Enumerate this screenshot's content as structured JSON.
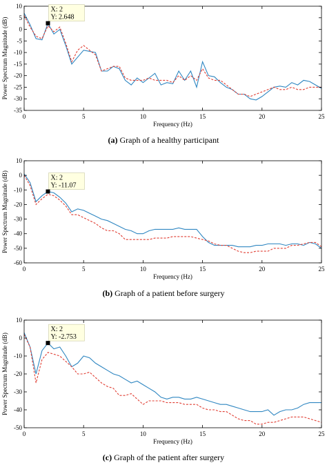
{
  "chart_data": [
    {
      "type": "line",
      "xlabel": "Frequency (Hz)",
      "ylabel": "Power Spectrum Magnitude (dB)",
      "xlim": [
        0,
        25
      ],
      "ylim": [
        -35,
        10
      ],
      "xticks": [
        0,
        5,
        10,
        15,
        20,
        25
      ],
      "yticks": [
        -35,
        -30,
        -25,
        -20,
        -15,
        -10,
        -5,
        0,
        5,
        10
      ],
      "grid": false,
      "caption_label": "(a)",
      "caption_text": "Graph of a healthy participant",
      "datatip": {
        "x": 2,
        "y": 2.648,
        "line1": "X: 2",
        "line2": "Y: 2.648"
      },
      "series": [
        {
          "style": "solid",
          "color": "#2e86c1",
          "x": [
            0,
            0.5,
            1,
            1.5,
            2,
            2.5,
            3,
            3.5,
            4,
            4.5,
            5,
            5.5,
            6,
            6.5,
            7,
            7.5,
            8,
            8.5,
            9,
            9.5,
            10,
            10.5,
            11,
            11.5,
            12,
            12.5,
            13,
            13.5,
            14,
            14.5,
            15,
            15.5,
            16,
            16.5,
            17,
            17.5,
            18,
            18.5,
            19,
            19.5,
            20,
            20.5,
            21,
            21.5,
            22,
            22.5,
            23,
            23.5,
            24,
            24.5,
            25
          ],
          "y": [
            7,
            2,
            -4,
            -4.5,
            2.6,
            -2,
            0,
            -7,
            -15,
            -12,
            -9,
            -9.5,
            -10,
            -18,
            -18,
            -16,
            -17,
            -22,
            -24,
            -21,
            -23,
            -21,
            -19,
            -24,
            -23,
            -23.5,
            -18,
            -22,
            -18,
            -25,
            -14,
            -20,
            -20.5,
            -23,
            -25,
            -26,
            -28,
            -28,
            -30,
            -30.5,
            -29,
            -27,
            -25,
            -24.5,
            -25,
            -23,
            -24,
            -22,
            -22.5,
            -24,
            -25.5
          ]
        },
        {
          "style": "dashed",
          "color": "#e03c31",
          "x": [
            0,
            0.5,
            1,
            1.5,
            2,
            2.5,
            3,
            3.5,
            4,
            4.5,
            5,
            5.5,
            6,
            6.5,
            7,
            7.5,
            8,
            8.5,
            9,
            9.5,
            10,
            10.5,
            11,
            11.5,
            12,
            12.5,
            13,
            13.5,
            14,
            14.5,
            15,
            15.5,
            16,
            16.5,
            17,
            17.5,
            18,
            18.5,
            19,
            19.5,
            20,
            20.5,
            21,
            21.5,
            22,
            22.5,
            23,
            23.5,
            24,
            24.5,
            25
          ],
          "y": [
            6,
            1,
            -3,
            -4,
            1.5,
            -1,
            1,
            -6,
            -14,
            -9,
            -7,
            -9,
            -11,
            -18,
            -17,
            -16,
            -16,
            -21,
            -22,
            -22,
            -22,
            -21,
            -22,
            -22,
            -22,
            -23,
            -20,
            -22,
            -20,
            -22,
            -17,
            -21,
            -22,
            -22,
            -24,
            -26,
            -28,
            -28,
            -29,
            -28,
            -27,
            -26,
            -25,
            -26,
            -26,
            -25,
            -26,
            -26,
            -25,
            -25,
            -25
          ]
        }
      ]
    },
    {
      "type": "line",
      "xlabel": "Frequency (Hz)",
      "ylabel": "Power Spectrum Magnitude (dB)",
      "xlim": [
        0,
        25
      ],
      "ylim": [
        -60,
        10
      ],
      "xticks": [
        0,
        5,
        10,
        15,
        20,
        25
      ],
      "yticks": [
        -60,
        -50,
        -40,
        -30,
        -20,
        -10,
        0,
        10
      ],
      "grid": false,
      "caption_label": "(b)",
      "caption_text": "Graph of a patient before surgery",
      "datatip": {
        "x": 2,
        "y": -11.07,
        "line1": "X: 2",
        "line2": "Y: -11.07"
      },
      "series": [
        {
          "style": "solid",
          "color": "#2e86c1",
          "x": [
            0,
            0.5,
            1,
            1.5,
            2,
            2.5,
            3,
            3.5,
            4,
            4.5,
            5,
            5.5,
            6,
            6.5,
            7,
            7.5,
            8,
            8.5,
            9,
            9.5,
            10,
            10.5,
            11,
            11.5,
            12,
            12.5,
            13,
            13.5,
            14,
            14.5,
            15,
            15.5,
            16,
            16.5,
            17,
            17.5,
            18,
            18.5,
            19,
            19.5,
            20,
            20.5,
            21,
            21.5,
            22,
            22.5,
            23,
            23.5,
            24,
            24.5,
            25
          ],
          "y": [
            1,
            -5,
            -18,
            -14,
            -11.07,
            -12,
            -15,
            -19,
            -25,
            -23,
            -24,
            -26,
            -28,
            -30,
            -31,
            -33,
            -35,
            -37,
            -38,
            -40,
            -40,
            -38,
            -37,
            -37,
            -37,
            -37,
            -36,
            -37,
            -37,
            -37,
            -42,
            -46,
            -48,
            -48,
            -48,
            -48,
            -49,
            -49,
            -49,
            -48,
            -48,
            -47,
            -47,
            -47,
            -48,
            -47,
            -47,
            -48,
            -46,
            -47,
            -50
          ]
        },
        {
          "style": "dashed",
          "color": "#e03c31",
          "x": [
            0,
            0.5,
            1,
            1.5,
            2,
            2.5,
            3,
            3.5,
            4,
            4.5,
            5,
            5.5,
            6,
            6.5,
            7,
            7.5,
            8,
            8.5,
            9,
            9.5,
            10,
            10.5,
            11,
            11.5,
            12,
            12.5,
            13,
            13.5,
            14,
            14.5,
            15,
            15.5,
            16,
            16.5,
            17,
            17.5,
            18,
            18.5,
            19,
            19.5,
            20,
            20.5,
            21,
            21.5,
            22,
            22.5,
            23,
            23.5,
            24,
            24.5,
            25
          ],
          "y": [
            0,
            -7,
            -20,
            -16,
            -13,
            -14,
            -17,
            -21,
            -27,
            -27,
            -29,
            -31,
            -33,
            -36,
            -38,
            -38,
            -40,
            -44,
            -44,
            -44,
            -44,
            -44,
            -43,
            -43,
            -43,
            -42,
            -42,
            -42,
            -42,
            -43,
            -44,
            -45,
            -47,
            -48,
            -48,
            -50,
            -52,
            -53,
            -53,
            -52,
            -52,
            -52,
            -50,
            -50,
            -50,
            -48,
            -48,
            -47,
            -46,
            -46,
            -49
          ]
        }
      ]
    },
    {
      "type": "line",
      "xlabel": "Frequency (Hz)",
      "ylabel": "Power Spectrum Magnitude (dB)",
      "xlim": [
        0,
        25
      ],
      "ylim": [
        -50,
        10
      ],
      "xticks": [
        0,
        5,
        10,
        15,
        20,
        25
      ],
      "yticks": [
        -50,
        -40,
        -30,
        -20,
        -10,
        0,
        10
      ],
      "grid": false,
      "caption_label": "(c)",
      "caption_text": "Graph of the patient after surgery",
      "datatip": {
        "x": 2,
        "y": -2.753,
        "line1": "X: 2",
        "line2": "Y: -2.753"
      },
      "series": [
        {
          "style": "solid",
          "color": "#2e86c1",
          "x": [
            0,
            0.5,
            1,
            1.5,
            2,
            2.5,
            3,
            3.5,
            4,
            4.5,
            5,
            5.5,
            6,
            6.5,
            7,
            7.5,
            8,
            8.5,
            9,
            9.5,
            10,
            10.5,
            11,
            11.5,
            12,
            12.5,
            13,
            13.5,
            14,
            14.5,
            15,
            15.5,
            16,
            16.5,
            17,
            17.5,
            18,
            18.5,
            19,
            19.5,
            20,
            20.5,
            21,
            21.5,
            22,
            22.5,
            23,
            23.5,
            24,
            24.5,
            25
          ],
          "y": [
            3,
            -5,
            -20,
            -7,
            -2.753,
            -6,
            -5,
            -10,
            -16,
            -14,
            -10,
            -11,
            -14,
            -16,
            -18,
            -20,
            -21,
            -23,
            -25,
            -24,
            -26,
            -28,
            -30,
            -33,
            -34,
            -33,
            -33,
            -34,
            -34,
            -33,
            -34,
            -35,
            -36,
            -37,
            -37,
            -38,
            -39,
            -40,
            -41,
            -41,
            -41,
            -40,
            -43,
            -41,
            -40,
            -40,
            -39,
            -37,
            -36,
            -36,
            -36
          ]
        },
        {
          "style": "dashed",
          "color": "#e03c31",
          "x": [
            0,
            0.5,
            1,
            1.5,
            2,
            2.5,
            3,
            3.5,
            4,
            4.5,
            5,
            5.5,
            6,
            6.5,
            7,
            7.5,
            8,
            8.5,
            9,
            9.5,
            10,
            10.5,
            11,
            11.5,
            12,
            12.5,
            13,
            13.5,
            14,
            14.5,
            15,
            15.5,
            16,
            16.5,
            17,
            17.5,
            18,
            18.5,
            19,
            19.5,
            20,
            20.5,
            21,
            21.5,
            22,
            22.5,
            23,
            23.5,
            24,
            24.5,
            25
          ],
          "y": [
            2,
            -5,
            -25,
            -12,
            -8,
            -9,
            -10,
            -13,
            -16,
            -20,
            -20,
            -19,
            -22,
            -25,
            -27,
            -28,
            -32,
            -32,
            -31,
            -34,
            -37,
            -35,
            -35,
            -35,
            -36,
            -36,
            -36,
            -37,
            -37,
            -37,
            -39,
            -40,
            -40,
            -41,
            -41,
            -43,
            -45,
            -46,
            -46,
            -48,
            -48,
            -47,
            -47,
            -46,
            -45,
            -44,
            -44,
            -44,
            -45,
            -46,
            -47
          ]
        }
      ]
    }
  ]
}
